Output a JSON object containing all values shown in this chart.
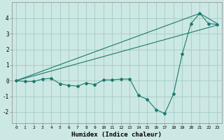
{
  "background_color": "#cce8e4",
  "grid_color": "#aaceca",
  "line_color": "#1a7a6e",
  "xlabel": "Humidex (Indice chaleur)",
  "ylim": [
    -2.7,
    5.0
  ],
  "xlim": [
    -0.5,
    23.5
  ],
  "yticks": [
    -2,
    -1,
    0,
    1,
    2,
    3,
    4
  ],
  "xticks": [
    0,
    1,
    2,
    3,
    4,
    5,
    6,
    7,
    8,
    9,
    10,
    11,
    12,
    13,
    14,
    15,
    16,
    17,
    18,
    19,
    20,
    21,
    22,
    23
  ],
  "zigzag": {
    "x": [
      0,
      1,
      2,
      3,
      4,
      5,
      6,
      7,
      8,
      9,
      10,
      11,
      12,
      13,
      14,
      15,
      16,
      17,
      18,
      19,
      20,
      21,
      22,
      23
    ],
    "y": [
      0.0,
      -0.05,
      -0.05,
      0.1,
      0.15,
      -0.2,
      -0.3,
      -0.35,
      -0.15,
      -0.25,
      0.05,
      0.05,
      0.1,
      0.1,
      -0.95,
      -1.2,
      -1.85,
      -2.1,
      -0.85,
      1.7,
      3.65,
      4.3,
      3.65,
      3.6
    ]
  },
  "line1": {
    "x": [
      0,
      23
    ],
    "y": [
      0.0,
      3.55
    ]
  },
  "line2": {
    "x": [
      0,
      21,
      23
    ],
    "y": [
      0.0,
      4.3,
      3.65
    ]
  }
}
